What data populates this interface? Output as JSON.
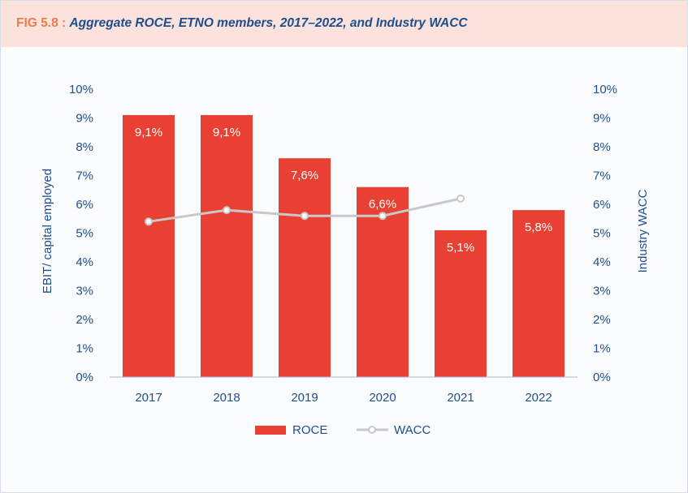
{
  "header": {
    "fig_label": "FIG 5.8 :",
    "title": "Aggregate ROCE, ETNO members, 2017–2022, and Industry WACC"
  },
  "colors": {
    "header_bg": "#fbe2dd",
    "fig_label": "#ef7b4c",
    "title": "#1f4e8c",
    "bar": "#e84032",
    "line": "#c8c8c8",
    "axis_text": "#1f4e8c",
    "tick_text": "#1f4e8c"
  },
  "chart_data": {
    "type": "bar",
    "categories": [
      "2017",
      "2018",
      "2019",
      "2020",
      "2021",
      "2022"
    ],
    "series": [
      {
        "name": "ROCE",
        "type": "bar",
        "values": [
          9.1,
          9.1,
          7.6,
          6.6,
          5.1,
          5.8
        ],
        "labels": [
          "9,1%",
          "9,1%",
          "7,6%",
          "6,6%",
          "5,1%",
          "5,8%"
        ]
      },
      {
        "name": "WACC",
        "type": "line",
        "values": [
          5.4,
          5.8,
          5.6,
          5.6,
          6.2,
          null
        ]
      }
    ],
    "ylabel_left": "EBIT/ capital employed",
    "ylabel_right": "Industry WACC",
    "ylim": [
      0,
      10
    ],
    "yticks": [
      "0%",
      "1%",
      "2%",
      "3%",
      "4%",
      "5%",
      "6%",
      "7%",
      "8%",
      "9%",
      "10%"
    ],
    "legend": [
      "ROCE",
      "WACC"
    ],
    "legend_position": "bottom"
  }
}
